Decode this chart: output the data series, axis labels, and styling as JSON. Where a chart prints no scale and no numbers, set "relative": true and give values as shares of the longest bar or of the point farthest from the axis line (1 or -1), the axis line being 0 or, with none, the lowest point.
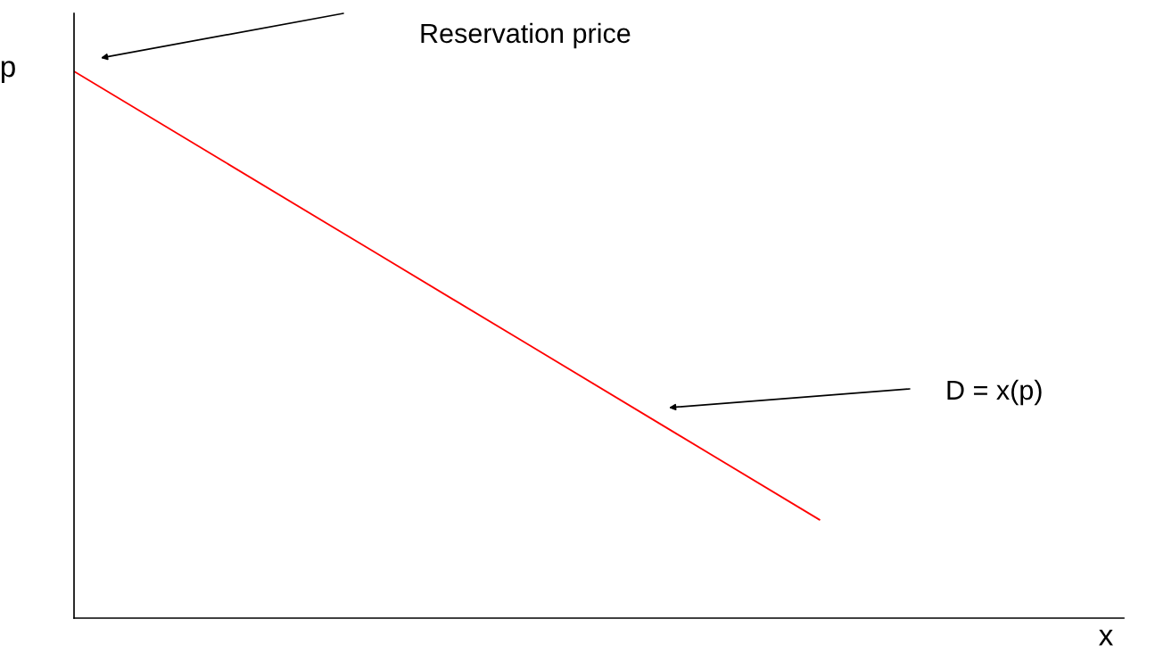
{
  "chart_data": {
    "type": "line",
    "relative": true,
    "xlabel": "x",
    "ylabel": "p",
    "categories": [
      null,
      null,
      null,
      null,
      null,
      null,
      null,
      null
    ],
    "series": [
      {
        "color": "#ff0000",
        "values": [
          1,
          0.836,
          0.672,
          0.508,
          0.344,
          0.18,
          null,
          null
        ]
      }
    ],
    "annotations": [
      "Reservation price",
      "D = x(p)"
    ],
    "legend": false,
    "marker": "none",
    "line_style": "solid"
  }
}
